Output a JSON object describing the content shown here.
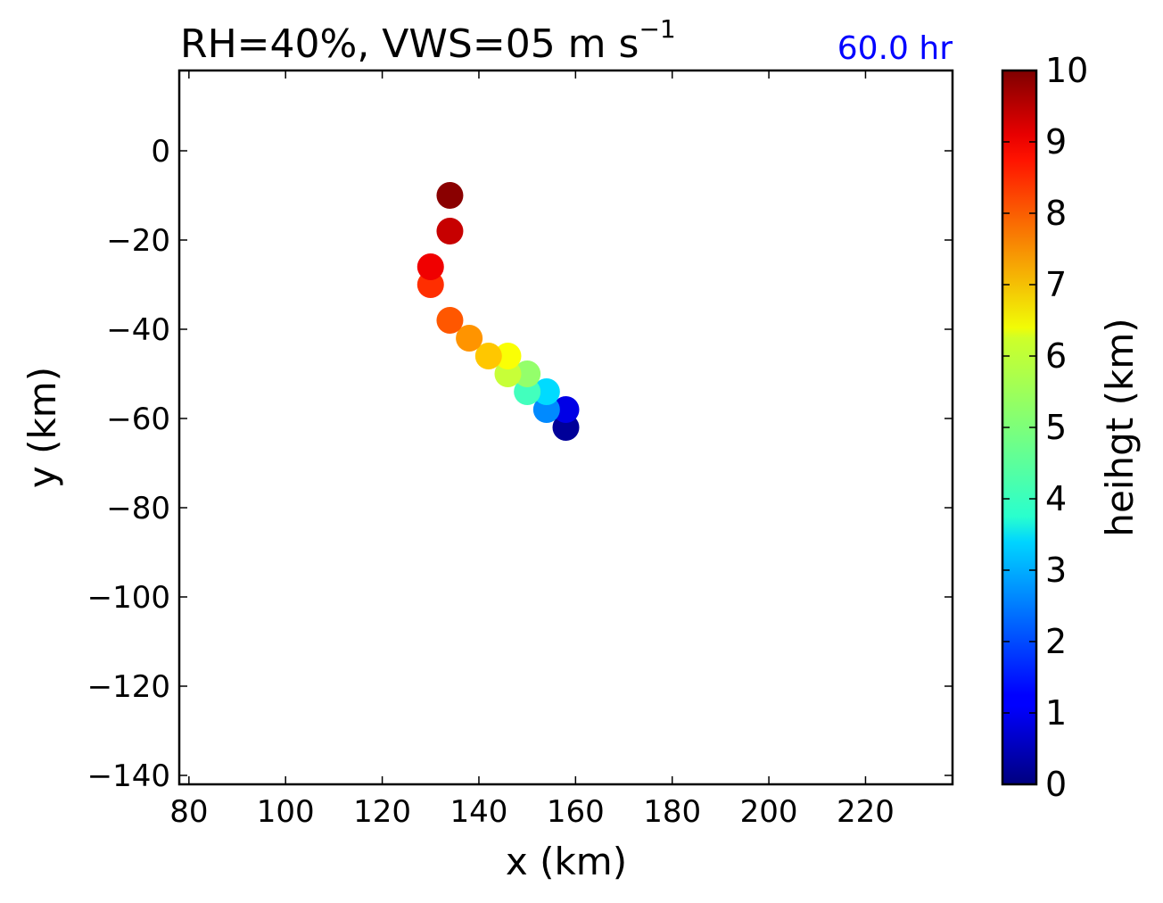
{
  "chart_data": {
    "type": "scatter",
    "title_main": "RH=40%, VWS=05 m s",
    "title_sup": "−1",
    "time_label": "60.0 hr",
    "time_color": "#0000ff",
    "xlabel": "x (km)",
    "ylabel": "y (km)",
    "xlim": [
      78,
      238
    ],
    "ylim": [
      -142,
      18
    ],
    "xticks": [
      80,
      100,
      120,
      140,
      160,
      180,
      200,
      220
    ],
    "yticks": [
      0,
      -20,
      -40,
      -60,
      -80,
      -100,
      -120,
      -140
    ],
    "xtick_labels": [
      "80",
      "100",
      "120",
      "140",
      "160",
      "180",
      "200",
      "220"
    ],
    "ytick_labels": [
      "0",
      "−20",
      "−40",
      "−60",
      "−80",
      "−100",
      "−120",
      "−140"
    ],
    "points": [
      {
        "x": 158,
        "y": -62,
        "h": 0.25
      },
      {
        "x": 158,
        "y": -58,
        "h": 1.0
      },
      {
        "x": 154,
        "y": -58,
        "h": 2.6
      },
      {
        "x": 154,
        "y": -54,
        "h": 3.4
      },
      {
        "x": 150,
        "y": -54,
        "h": 4.4
      },
      {
        "x": 150,
        "y": -50,
        "h": 5.2
      },
      {
        "x": 146,
        "y": -50,
        "h": 5.7
      },
      {
        "x": 146,
        "y": -46,
        "h": 6.2
      },
      {
        "x": 142,
        "y": -46,
        "h": 6.8
      },
      {
        "x": 138,
        "y": -42,
        "h": 7.3
      },
      {
        "x": 134,
        "y": -38,
        "h": 7.9
      },
      {
        "x": 130,
        "y": -30,
        "h": 8.3
      },
      {
        "x": 130,
        "y": -26,
        "h": 8.9
      },
      {
        "x": 134,
        "y": -18,
        "h": 9.3
      },
      {
        "x": 134,
        "y": -10,
        "h": 9.9
      }
    ],
    "colorbar": {
      "label": "heihgt (km)",
      "range": [
        0,
        10
      ],
      "ticks": [
        "0",
        "1",
        "2",
        "3",
        "4",
        "5",
        "6",
        "7",
        "8",
        "9",
        "10"
      ],
      "colormap": "jet"
    },
    "grid": false,
    "legend": "none"
  }
}
